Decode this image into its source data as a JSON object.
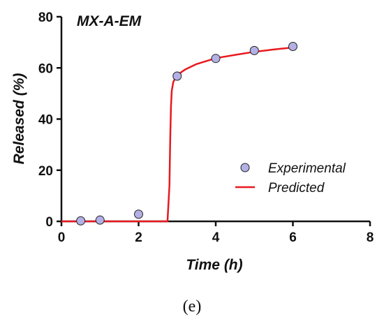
{
  "chart_data": {
    "type": "scatter",
    "title": "MX-A-EM",
    "xlabel": "Time (h)",
    "ylabel": "Released (%)",
    "xlim": [
      0,
      8
    ],
    "ylim": [
      0,
      80
    ],
    "xticks": [
      "0",
      "2",
      "4",
      "6",
      "8"
    ],
    "yticks": [
      "0",
      "20",
      "40",
      "60",
      "80"
    ],
    "grid": false,
    "legend_position": "right",
    "series": [
      {
        "name": "Experimental",
        "kind": "scatter",
        "color": "#b3b0e6",
        "x": [
          0.5,
          1,
          2,
          3,
          4,
          5,
          6
        ],
        "y": [
          0.2,
          0.5,
          2.8,
          56.8,
          63.7,
          66.8,
          68.4
        ]
      },
      {
        "name": "Predicted",
        "kind": "line",
        "color": "#e8191f",
        "x": [
          0,
          2.75,
          2.8,
          2.82,
          2.84,
          2.86,
          2.9,
          2.95,
          3.0,
          3.2,
          3.5,
          4.0,
          4.5,
          5.0,
          5.5,
          6.0
        ],
        "y": [
          0,
          0,
          14,
          32,
          45,
          51,
          54.5,
          56,
          57.2,
          59.3,
          61.5,
          63.8,
          65.1,
          66.3,
          67.2,
          68.0
        ]
      }
    ]
  },
  "panel_label": "(e)"
}
